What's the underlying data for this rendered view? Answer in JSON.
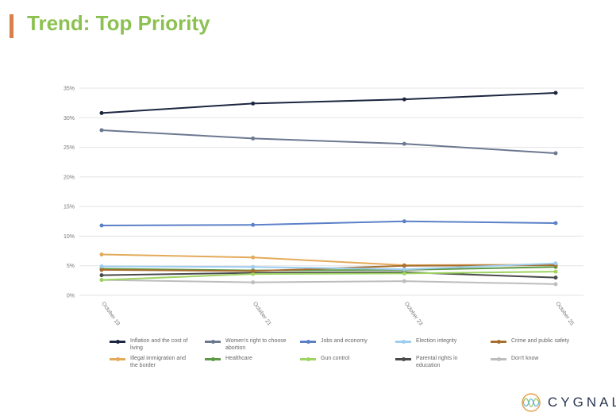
{
  "header": {
    "title": "Trend: Top Priority"
  },
  "logo": {
    "text": "CYGNAL"
  },
  "chart_data": {
    "type": "line",
    "title": "Trend: Top Priority",
    "categories": [
      "October 19",
      "October 21",
      "October 23",
      "October 25"
    ],
    "y_ticks": [
      "0%",
      "5%",
      "10%",
      "15%",
      "20%",
      "25%",
      "30%",
      "35%"
    ],
    "ylim": [
      0,
      35
    ],
    "grid": true,
    "legend_position": "bottom",
    "series": [
      {
        "name": "Inflation and the cost of living",
        "color": "#1c2640",
        "values": [
          30.8,
          32.4,
          33.1,
          34.2
        ]
      },
      {
        "name": "Women's right to choose abortion",
        "color": "#6b7890",
        "values": [
          27.9,
          26.5,
          25.6,
          24.0
        ]
      },
      {
        "name": "Jobs and economy",
        "color": "#5b80c8",
        "values": [
          11.8,
          11.9,
          12.5,
          12.2
        ]
      },
      {
        "name": "Election integrity",
        "color": "#9fcdf0",
        "values": [
          4.9,
          4.8,
          4.4,
          5.4
        ]
      },
      {
        "name": "Crime and public safety",
        "color": "#a86e2e",
        "values": [
          4.3,
          4.1,
          5.0,
          5.1
        ]
      },
      {
        "name": "Illegal immigration and the border",
        "color": "#e3aa5a",
        "values": [
          6.9,
          6.4,
          5.1,
          5.2
        ]
      },
      {
        "name": "Healthcare",
        "color": "#5e9a45",
        "values": [
          4.5,
          4.2,
          4.3,
          4.8
        ]
      },
      {
        "name": "Gun control",
        "color": "#9ed462",
        "values": [
          2.6,
          3.6,
          3.7,
          4.0
        ]
      },
      {
        "name": "Parental rights in education",
        "color": "#4a4a4a",
        "values": [
          3.4,
          3.8,
          3.9,
          3.0
        ]
      },
      {
        "name": "Don't know",
        "color": "#bdbdbd",
        "values": [
          2.6,
          2.2,
          2.4,
          1.9
        ]
      }
    ]
  }
}
